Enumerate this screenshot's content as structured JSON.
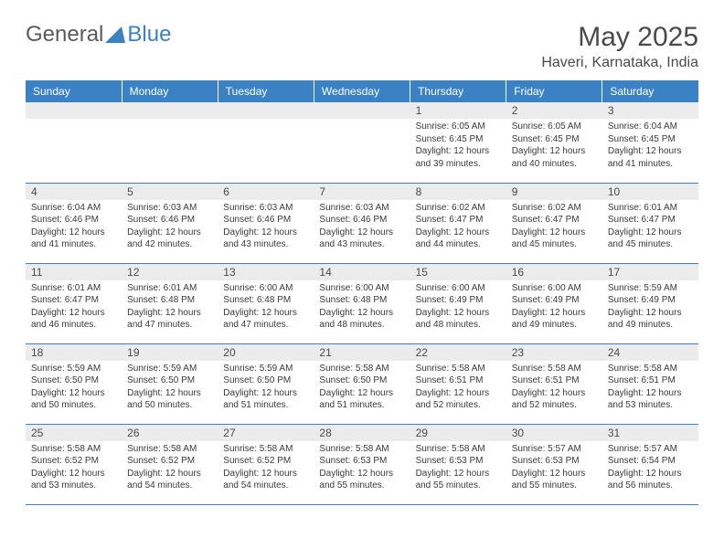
{
  "logo": {
    "text1": "General",
    "text2": "Blue"
  },
  "title": "May 2025",
  "subtitle": "Haveri, Karnataka, India",
  "colors": {
    "header_bg": "#3b82c4",
    "header_text": "#ffffff",
    "daynum_bg": "#ececec",
    "border": "#3b82c4",
    "text": "#3a3a3a",
    "title_text": "#4a4a4a"
  },
  "day_headers": [
    "Sunday",
    "Monday",
    "Tuesday",
    "Wednesday",
    "Thursday",
    "Friday",
    "Saturday"
  ],
  "weeks": [
    [
      {
        "empty": true
      },
      {
        "empty": true
      },
      {
        "empty": true
      },
      {
        "empty": true
      },
      {
        "n": "1",
        "sr": "6:05 AM",
        "ss": "6:45 PM",
        "dl": "12 hours and 39 minutes."
      },
      {
        "n": "2",
        "sr": "6:05 AM",
        "ss": "6:45 PM",
        "dl": "12 hours and 40 minutes."
      },
      {
        "n": "3",
        "sr": "6:04 AM",
        "ss": "6:45 PM",
        "dl": "12 hours and 41 minutes."
      }
    ],
    [
      {
        "n": "4",
        "sr": "6:04 AM",
        "ss": "6:46 PM",
        "dl": "12 hours and 41 minutes."
      },
      {
        "n": "5",
        "sr": "6:03 AM",
        "ss": "6:46 PM",
        "dl": "12 hours and 42 minutes."
      },
      {
        "n": "6",
        "sr": "6:03 AM",
        "ss": "6:46 PM",
        "dl": "12 hours and 43 minutes."
      },
      {
        "n": "7",
        "sr": "6:03 AM",
        "ss": "6:46 PM",
        "dl": "12 hours and 43 minutes."
      },
      {
        "n": "8",
        "sr": "6:02 AM",
        "ss": "6:47 PM",
        "dl": "12 hours and 44 minutes."
      },
      {
        "n": "9",
        "sr": "6:02 AM",
        "ss": "6:47 PM",
        "dl": "12 hours and 45 minutes."
      },
      {
        "n": "10",
        "sr": "6:01 AM",
        "ss": "6:47 PM",
        "dl": "12 hours and 45 minutes."
      }
    ],
    [
      {
        "n": "11",
        "sr": "6:01 AM",
        "ss": "6:47 PM",
        "dl": "12 hours and 46 minutes."
      },
      {
        "n": "12",
        "sr": "6:01 AM",
        "ss": "6:48 PM",
        "dl": "12 hours and 47 minutes."
      },
      {
        "n": "13",
        "sr": "6:00 AM",
        "ss": "6:48 PM",
        "dl": "12 hours and 47 minutes."
      },
      {
        "n": "14",
        "sr": "6:00 AM",
        "ss": "6:48 PM",
        "dl": "12 hours and 48 minutes."
      },
      {
        "n": "15",
        "sr": "6:00 AM",
        "ss": "6:49 PM",
        "dl": "12 hours and 48 minutes."
      },
      {
        "n": "16",
        "sr": "6:00 AM",
        "ss": "6:49 PM",
        "dl": "12 hours and 49 minutes."
      },
      {
        "n": "17",
        "sr": "5:59 AM",
        "ss": "6:49 PM",
        "dl": "12 hours and 49 minutes."
      }
    ],
    [
      {
        "n": "18",
        "sr": "5:59 AM",
        "ss": "6:50 PM",
        "dl": "12 hours and 50 minutes."
      },
      {
        "n": "19",
        "sr": "5:59 AM",
        "ss": "6:50 PM",
        "dl": "12 hours and 50 minutes."
      },
      {
        "n": "20",
        "sr": "5:59 AM",
        "ss": "6:50 PM",
        "dl": "12 hours and 51 minutes."
      },
      {
        "n": "21",
        "sr": "5:58 AM",
        "ss": "6:50 PM",
        "dl": "12 hours and 51 minutes."
      },
      {
        "n": "22",
        "sr": "5:58 AM",
        "ss": "6:51 PM",
        "dl": "12 hours and 52 minutes."
      },
      {
        "n": "23",
        "sr": "5:58 AM",
        "ss": "6:51 PM",
        "dl": "12 hours and 52 minutes."
      },
      {
        "n": "24",
        "sr": "5:58 AM",
        "ss": "6:51 PM",
        "dl": "12 hours and 53 minutes."
      }
    ],
    [
      {
        "n": "25",
        "sr": "5:58 AM",
        "ss": "6:52 PM",
        "dl": "12 hours and 53 minutes."
      },
      {
        "n": "26",
        "sr": "5:58 AM",
        "ss": "6:52 PM",
        "dl": "12 hours and 54 minutes."
      },
      {
        "n": "27",
        "sr": "5:58 AM",
        "ss": "6:52 PM",
        "dl": "12 hours and 54 minutes."
      },
      {
        "n": "28",
        "sr": "5:58 AM",
        "ss": "6:53 PM",
        "dl": "12 hours and 55 minutes."
      },
      {
        "n": "29",
        "sr": "5:58 AM",
        "ss": "6:53 PM",
        "dl": "12 hours and 55 minutes."
      },
      {
        "n": "30",
        "sr": "5:57 AM",
        "ss": "6:53 PM",
        "dl": "12 hours and 55 minutes."
      },
      {
        "n": "31",
        "sr": "5:57 AM",
        "ss": "6:54 PM",
        "dl": "12 hours and 56 minutes."
      }
    ]
  ],
  "labels": {
    "sunrise": "Sunrise: ",
    "sunset": "Sunset: ",
    "daylight": "Daylight: "
  }
}
